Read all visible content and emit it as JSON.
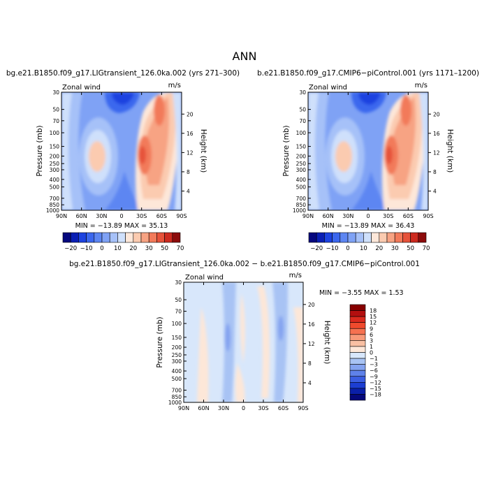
{
  "page_title": "ANN",
  "chart_data": [
    {
      "type": "heatmap",
      "title": "bg.e21.B1850.f09_g17.LIGtransient_126.0ka.002 (yrs 271–300)",
      "variable_label": "Zonal wind",
      "units_label": "m/s",
      "xlabel": "",
      "ylabel": "Pressure (mb)",
      "y2label": "Height (km)",
      "x_ticks": [
        "90N",
        "60N",
        "30N",
        "0",
        "30S",
        "60S",
        "90S"
      ],
      "y_ticks": [
        "30",
        "50",
        "70",
        "100",
        "150",
        "200",
        "250",
        "300",
        "400",
        "500",
        "700",
        "850",
        "1000"
      ],
      "y2_ticks": [
        "20",
        "16",
        "12",
        "8",
        "4"
      ],
      "stats_text": "MIN = −13.89   MAX =  35.13",
      "min": -13.89,
      "max": 35.13,
      "colorbar_labels": [
        "−20",
        "−10",
        "0",
        "10",
        "20",
        "30",
        "50",
        "70"
      ]
    },
    {
      "type": "heatmap",
      "title": "b.e21.B1850.f09_g17.CMIP6−piControl.001 (yrs 1171–1200)",
      "variable_label": "Zonal wind",
      "units_label": "m/s",
      "xlabel": "",
      "ylabel": "Pressure (mb)",
      "y2label": "Height (km)",
      "x_ticks": [
        "90N",
        "60N",
        "30N",
        "0",
        "30S",
        "60S",
        "90S"
      ],
      "y_ticks": [
        "30",
        "50",
        "70",
        "100",
        "150",
        "200",
        "250",
        "300",
        "400",
        "500",
        "700",
        "850",
        "1000"
      ],
      "y2_ticks": [
        "20",
        "16",
        "12",
        "8",
        "4"
      ],
      "stats_text": "MIN = −13.89   MAX =  36.43",
      "min": -13.89,
      "max": 36.43,
      "colorbar_labels": [
        "−20",
        "−10",
        "0",
        "10",
        "20",
        "30",
        "50",
        "70"
      ]
    },
    {
      "type": "heatmap",
      "title": "bg.e21.B1850.f09_g17.LIGtransient_126.0ka.002 − b.e21.B1850.f09_g17.CMIP6−piControl.001",
      "variable_label": "Zonal wind",
      "units_label": "m/s",
      "xlabel": "",
      "ylabel": "Pressure (mb)",
      "y2label": "Height (km)",
      "x_ticks": [
        "90N",
        "60N",
        "30N",
        "0",
        "30S",
        "60S",
        "90S"
      ],
      "y_ticks": [
        "30",
        "50",
        "70",
        "100",
        "150",
        "200",
        "250",
        "300",
        "400",
        "500",
        "700",
        "850",
        "1000"
      ],
      "y2_ticks": [
        "20",
        "16",
        "12",
        "8",
        "4"
      ],
      "stats_text": "MIN =   −3.55   MAX =    1.53",
      "min": -3.55,
      "max": 1.53,
      "colorbar_labels": [
        "18",
        "15",
        "12",
        "9",
        "6",
        "3",
        "1",
        "0",
        "−1",
        "−3",
        "−6",
        "−9",
        "−12",
        "−15",
        "−18"
      ]
    }
  ],
  "colors": {
    "abs_scale": [
      "#05087e",
      "#0a1fb4",
      "#1d43e0",
      "#3b67ee",
      "#5d86f2",
      "#7fa2f5",
      "#a6c1f8",
      "#cfe0fb",
      "#fde7d9",
      "#fbcbb0",
      "#f7a383",
      "#f27a5a",
      "#e6523a",
      "#cc2a1f",
      "#8c0b0b"
    ],
    "diff_scale": [
      "#870000",
      "#b30f0f",
      "#da2a1e",
      "#f04a2d",
      "#f67150",
      "#f89a79",
      "#f9c0a3",
      "#fde7d8",
      "#d8e7fb",
      "#a8c3f4",
      "#84a3f0",
      "#5f82ea",
      "#3b5ee2",
      "#1c3ed2",
      "#0a1fa8",
      "#05087a"
    ]
  }
}
